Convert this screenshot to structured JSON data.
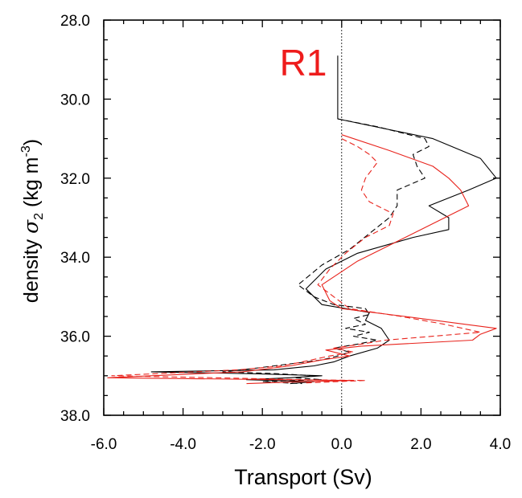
{
  "chart_data": {
    "type": "line",
    "title": "R1",
    "xlabel": "Transport (Sv)",
    "ylabel_prefix": "density ",
    "ylabel_symbol": "σ",
    "ylabel_subscript": "2",
    "ylabel_units_open": " (kg m",
    "ylabel_units_exp": "-3",
    "ylabel_units_close": ")",
    "xlim": [
      -6.0,
      4.0
    ],
    "ylim": [
      28.0,
      38.0
    ],
    "y_inverted": true,
    "x_ticks": [
      "-6.0",
      "-4.0",
      "-2.0",
      "0.0",
      "2.0",
      "4.0"
    ],
    "y_ticks": [
      "28.0",
      "30.0",
      "32.0",
      "34.0",
      "36.0",
      "38.0"
    ],
    "grid": false,
    "colors": {
      "black": "#000000",
      "red": "#e8231c",
      "title": "#ee1c1c"
    },
    "series": [
      {
        "color": "#000000",
        "dash": false,
        "points": [
          [
            -0.1,
            28.9
          ],
          [
            -0.1,
            29.5
          ],
          [
            -0.1,
            30.5
          ],
          [
            2.3,
            31.0
          ],
          [
            3.5,
            31.5
          ],
          [
            3.9,
            32.0
          ],
          [
            3.2,
            32.3
          ],
          [
            2.2,
            32.7
          ],
          [
            2.7,
            33.0
          ],
          [
            2.7,
            33.3
          ],
          [
            1.8,
            33.5
          ],
          [
            0.4,
            33.9
          ],
          [
            -0.4,
            34.3
          ],
          [
            -0.9,
            34.8
          ],
          [
            -0.5,
            35.2
          ],
          [
            0.1,
            35.3
          ],
          [
            0.7,
            35.4
          ],
          [
            0.6,
            35.6
          ],
          [
            1.0,
            35.8
          ],
          [
            1.2,
            36.1
          ],
          [
            0.9,
            36.3
          ],
          [
            0.2,
            36.5
          ],
          [
            -0.2,
            36.65
          ],
          [
            -0.7,
            36.75
          ],
          [
            -1.7,
            36.85
          ],
          [
            -4.8,
            36.9
          ],
          [
            -2.2,
            36.95
          ],
          [
            -0.5,
            37.0
          ],
          [
            -1.3,
            37.05
          ],
          [
            -2.4,
            37.1
          ],
          [
            -0.7,
            37.15
          ],
          [
            -1.3,
            37.2
          ]
        ]
      },
      {
        "color": "#000000",
        "dash": true,
        "points": [
          [
            -0.1,
            30.5
          ],
          [
            0.9,
            30.7
          ],
          [
            2.1,
            31.0
          ],
          [
            2.2,
            31.2
          ],
          [
            1.8,
            31.4
          ],
          [
            1.9,
            31.7
          ],
          [
            2.1,
            32.0
          ],
          [
            1.4,
            32.3
          ],
          [
            1.4,
            32.7
          ],
          [
            1.2,
            33.0
          ],
          [
            0.7,
            33.4
          ],
          [
            0.2,
            33.8
          ],
          [
            -0.5,
            34.2
          ],
          [
            -1.1,
            34.7
          ],
          [
            -0.7,
            35.0
          ],
          [
            -0.2,
            35.2
          ],
          [
            0.6,
            35.3
          ],
          [
            0.7,
            35.45
          ],
          [
            0.3,
            35.55
          ],
          [
            0.6,
            35.7
          ],
          [
            0.1,
            35.8
          ],
          [
            0.7,
            35.9
          ],
          [
            0.3,
            36.0
          ],
          [
            0.9,
            36.1
          ],
          [
            0.4,
            36.2
          ],
          [
            -0.2,
            36.3
          ],
          [
            0.2,
            36.4
          ],
          [
            -0.1,
            36.5
          ],
          [
            -0.5,
            36.6
          ],
          [
            -1.3,
            36.7
          ],
          [
            -2.1,
            36.8
          ],
          [
            -3.0,
            36.9
          ],
          [
            -1.6,
            36.95
          ],
          [
            -0.7,
            37.0
          ],
          [
            -1.2,
            37.05
          ],
          [
            -0.5,
            37.1
          ],
          [
            -2.0,
            37.15
          ],
          [
            -1.0,
            37.2
          ]
        ]
      },
      {
        "color": "#e8231c",
        "dash": false,
        "points": [
          [
            0.0,
            30.9
          ],
          [
            1.2,
            31.3
          ],
          [
            2.3,
            31.7
          ],
          [
            2.7,
            32.0
          ],
          [
            3.0,
            32.3
          ],
          [
            3.2,
            32.7
          ],
          [
            2.6,
            33.0
          ],
          [
            1.8,
            33.4
          ],
          [
            1.0,
            33.8
          ],
          [
            0.4,
            34.1
          ],
          [
            -0.5,
            34.7
          ],
          [
            -0.3,
            35.1
          ],
          [
            0.0,
            35.3
          ],
          [
            1.6,
            35.5
          ],
          [
            3.9,
            35.8
          ],
          [
            3.5,
            35.95
          ],
          [
            3.3,
            36.1
          ],
          [
            0.5,
            36.25
          ],
          [
            -0.4,
            36.35
          ],
          [
            0.2,
            36.5
          ],
          [
            -0.5,
            36.6
          ],
          [
            -1.3,
            36.75
          ],
          [
            -2.5,
            36.9
          ],
          [
            -4.8,
            37.0
          ],
          [
            -5.9,
            37.05
          ],
          [
            -1.5,
            37.1
          ],
          [
            0.3,
            37.12
          ],
          [
            -1.0,
            37.15
          ],
          [
            -2.4,
            37.2
          ]
        ]
      },
      {
        "color": "#e8231c",
        "dash": true,
        "points": [
          [
            0.0,
            31.0
          ],
          [
            0.4,
            31.2
          ],
          [
            0.7,
            31.4
          ],
          [
            0.9,
            31.6
          ],
          [
            0.6,
            32.0
          ],
          [
            0.5,
            32.3
          ],
          [
            0.7,
            32.6
          ],
          [
            1.3,
            32.9
          ],
          [
            1.2,
            33.2
          ],
          [
            0.6,
            33.5
          ],
          [
            0.1,
            33.9
          ],
          [
            -0.3,
            34.3
          ],
          [
            -0.6,
            34.7
          ],
          [
            -0.2,
            35.0
          ],
          [
            0.2,
            35.3
          ],
          [
            1.5,
            35.5
          ],
          [
            2.6,
            35.7
          ],
          [
            3.5,
            35.9
          ],
          [
            2.3,
            36.0
          ],
          [
            1.1,
            36.1
          ],
          [
            0.5,
            36.2
          ],
          [
            -0.2,
            36.3
          ],
          [
            0.3,
            36.4
          ],
          [
            -0.3,
            36.5
          ],
          [
            -1.0,
            36.65
          ],
          [
            -1.5,
            36.75
          ],
          [
            -2.6,
            36.85
          ],
          [
            -5.8,
            37.0
          ],
          [
            -3.2,
            37.05
          ],
          [
            -1.0,
            37.1
          ],
          [
            0.6,
            37.12
          ],
          [
            -0.9,
            37.18
          ]
        ]
      }
    ]
  }
}
